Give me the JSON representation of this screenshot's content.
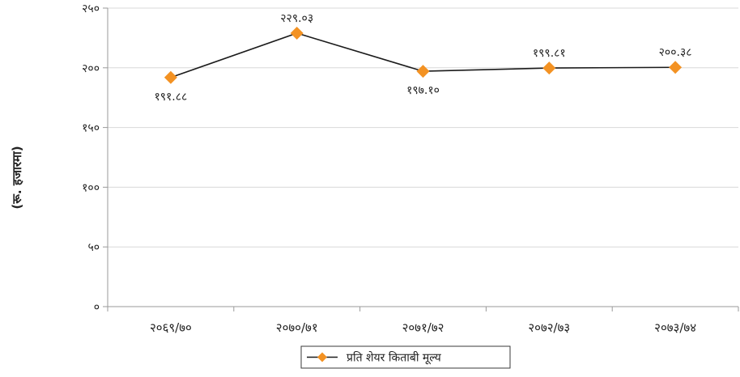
{
  "chart_data": {
    "type": "line",
    "title": "",
    "xlabel": "",
    "ylabel": "(रू. हजारमा)",
    "categories": [
      "२०६९/७०",
      "२०७०/७१",
      "२०७१/७२",
      "२०७२/७३",
      "२०७३/७४"
    ],
    "series": [
      {
        "name": "प्रति शेयर किताबी मूल्य",
        "values": [
          191.88,
          229.03,
          197.1,
          199.81,
          200.38
        ],
        "data_labels": [
          "१९१.८८",
          "२२९.०३",
          "१९७.१०",
          "१९९.८१",
          "२००.३८"
        ],
        "data_label_position": [
          "below",
          "above",
          "below",
          "above",
          "above"
        ],
        "color": "#F39223",
        "line_color": "#1B1B1B",
        "marker": "diamond"
      }
    ],
    "ylim": [
      0,
      250
    ],
    "yticks": [
      0,
      50,
      100,
      150,
      200,
      250
    ],
    "ytick_labels": [
      "०",
      "५०",
      "१००",
      "१५०",
      "२००",
      "२५०"
    ],
    "grid": true,
    "legend_position": "bottom-center"
  }
}
